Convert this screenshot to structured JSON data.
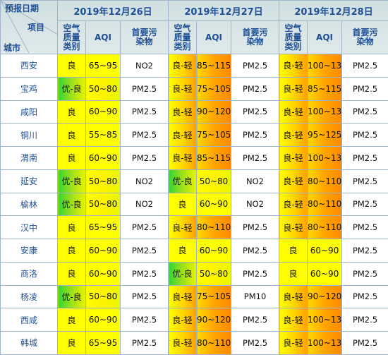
{
  "header": {
    "forecast_date_label": "预报日期",
    "item_label": "项目",
    "city_label": "城市",
    "dates": [
      "2019年12月26日",
      "2019年12月27日",
      "2019年12月28日"
    ],
    "col_level": "空气质量类别",
    "col_aqi": "AQI",
    "col_pollutant": "首要污染物"
  },
  "rows": [
    {
      "city": "西安",
      "d": [
        {
          "level": "良",
          "lc": "liang",
          "aqi": "65~95",
          "ac": "y",
          "p": "NO2"
        },
        {
          "level": "良-轻",
          "lc": "liangqing",
          "aqi": "85~115",
          "ac": "o",
          "p": "PM2.5"
        },
        {
          "level": "良-轻",
          "lc": "liangqing",
          "aqi": "100~130",
          "ac": "o",
          "p": "PM2.5"
        }
      ]
    },
    {
      "city": "宝鸡",
      "d": [
        {
          "level": "优-良",
          "lc": "youliang",
          "aqi": "50~80",
          "ac": "g",
          "p": "PM2.5"
        },
        {
          "level": "良-轻",
          "lc": "liangqing",
          "aqi": "75~105",
          "ac": "o",
          "p": "PM2.5"
        },
        {
          "level": "良-轻",
          "lc": "liangqing",
          "aqi": "85~115",
          "ac": "o",
          "p": "PM2.5"
        }
      ]
    },
    {
      "city": "咸阳",
      "d": [
        {
          "level": "良",
          "lc": "liang",
          "aqi": "60~90",
          "ac": "y",
          "p": "PM2.5"
        },
        {
          "level": "良-轻",
          "lc": "liangqing",
          "aqi": "90~120",
          "ac": "o",
          "p": "PM2.5"
        },
        {
          "level": "良-轻",
          "lc": "liangqing",
          "aqi": "100~130",
          "ac": "o",
          "p": "PM2.5"
        }
      ]
    },
    {
      "city": "铜川",
      "d": [
        {
          "level": "良",
          "lc": "liang",
          "aqi": "55~85",
          "ac": "y",
          "p": "PM2.5"
        },
        {
          "level": "良-轻",
          "lc": "liangqing",
          "aqi": "75~105",
          "ac": "o",
          "p": "PM2.5"
        },
        {
          "level": "良-轻",
          "lc": "liangqing",
          "aqi": "95~125",
          "ac": "o",
          "p": "PM2.5"
        }
      ]
    },
    {
      "city": "渭南",
      "d": [
        {
          "level": "良",
          "lc": "liang",
          "aqi": "60~90",
          "ac": "y",
          "p": "PM2.5"
        },
        {
          "level": "良-轻",
          "lc": "liangqing",
          "aqi": "85~115",
          "ac": "o",
          "p": "PM2.5"
        },
        {
          "level": "良-轻",
          "lc": "liangqing",
          "aqi": "100~130",
          "ac": "o",
          "p": "PM2.5"
        }
      ]
    },
    {
      "city": "延安",
      "d": [
        {
          "level": "优-良",
          "lc": "youliang",
          "aqi": "50~80",
          "ac": "g",
          "p": "NO2"
        },
        {
          "level": "优-良",
          "lc": "youliang",
          "aqi": "50~80",
          "ac": "g",
          "p": "NO2"
        },
        {
          "level": "良-轻",
          "lc": "liangqing",
          "aqi": "80~110",
          "ac": "o",
          "p": "PM2.5"
        }
      ]
    },
    {
      "city": "榆林",
      "d": [
        {
          "level": "优-良",
          "lc": "youliang",
          "aqi": "50~80",
          "ac": "g",
          "p": "NO2"
        },
        {
          "level": "良",
          "lc": "liang",
          "aqi": "60~90",
          "ac": "y",
          "p": "NO2"
        },
        {
          "level": "良-轻",
          "lc": "liangqing",
          "aqi": "80~110",
          "ac": "o",
          "p": "PM2.5"
        }
      ]
    },
    {
      "city": "汉中",
      "d": [
        {
          "level": "良",
          "lc": "liang",
          "aqi": "65~95",
          "ac": "y",
          "p": "PM2.5"
        },
        {
          "level": "良-轻",
          "lc": "liangqing",
          "aqi": "80~110",
          "ac": "o",
          "p": "PM2.5"
        },
        {
          "level": "良-轻",
          "lc": "liangqing",
          "aqi": "80~110",
          "ac": "o",
          "p": "PM2.5"
        }
      ]
    },
    {
      "city": "安康",
      "d": [
        {
          "level": "良",
          "lc": "liang",
          "aqi": "60~90",
          "ac": "y",
          "p": "PM2.5"
        },
        {
          "level": "良",
          "lc": "liang",
          "aqi": "60~90",
          "ac": "y",
          "p": "PM2.5"
        },
        {
          "level": "良",
          "lc": "liang",
          "aqi": "60~90",
          "ac": "y",
          "p": "PM2.5"
        }
      ]
    },
    {
      "city": "商洛",
      "d": [
        {
          "level": "良",
          "lc": "liang",
          "aqi": "60~90",
          "ac": "y",
          "p": "PM2.5"
        },
        {
          "level": "优-良",
          "lc": "youliang",
          "aqi": "50~80",
          "ac": "g",
          "p": "PM2.5"
        },
        {
          "level": "良",
          "lc": "liang",
          "aqi": "60~90",
          "ac": "y",
          "p": "PM2.5"
        }
      ]
    },
    {
      "city": "杨凌",
      "d": [
        {
          "level": "优-良",
          "lc": "youliang",
          "aqi": "50~80",
          "ac": "g",
          "p": "PM2.5"
        },
        {
          "level": "良-轻",
          "lc": "liangqing",
          "aqi": "75~105",
          "ac": "o",
          "p": "PM10"
        },
        {
          "level": "良-轻",
          "lc": "liangqing",
          "aqi": "90~120",
          "ac": "o",
          "p": "PM2.5"
        }
      ]
    },
    {
      "city": "西咸",
      "d": [
        {
          "level": "良",
          "lc": "liang",
          "aqi": "60~90",
          "ac": "y",
          "p": "PM2.5"
        },
        {
          "level": "良-轻",
          "lc": "liangqing",
          "aqi": "90~120",
          "ac": "o",
          "p": "PM2.5"
        },
        {
          "level": "良-轻",
          "lc": "liangqing",
          "aqi": "100~130",
          "ac": "o",
          "p": "PM2.5"
        }
      ]
    },
    {
      "city": "韩城",
      "d": [
        {
          "level": "良",
          "lc": "liang",
          "aqi": "65~95",
          "ac": "y",
          "p": "PM2.5"
        },
        {
          "level": "良-轻",
          "lc": "liangqing",
          "aqi": "80~110",
          "ac": "o",
          "p": "PM2.5"
        },
        {
          "level": "良-轻",
          "lc": "liangqing",
          "aqi": "100~130",
          "ac": "o",
          "p": "PM2.5"
        }
      ]
    }
  ]
}
